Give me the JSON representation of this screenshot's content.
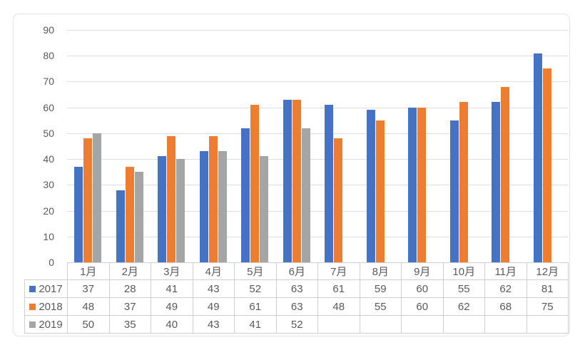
{
  "chart_data": {
    "type": "bar",
    "title": "",
    "xlabel": "",
    "ylabel": "",
    "categories": [
      "1月",
      "2月",
      "3月",
      "4月",
      "5月",
      "6月",
      "7月",
      "8月",
      "9月",
      "10月",
      "11月",
      "12月"
    ],
    "series": [
      {
        "name": "2017",
        "color": "#4472C4",
        "values": [
          37,
          28,
          41,
          43,
          52,
          63,
          61,
          59,
          60,
          55,
          62,
          81
        ]
      },
      {
        "name": "2018",
        "color": "#ED7D31",
        "values": [
          48,
          37,
          49,
          49,
          61,
          63,
          48,
          55,
          60,
          62,
          68,
          75
        ]
      },
      {
        "name": "2019",
        "color": "#A5A5A5",
        "values": [
          50,
          35,
          40,
          43,
          41,
          52,
          null,
          null,
          null,
          null,
          null,
          null
        ]
      }
    ],
    "ylim": [
      0,
      90
    ],
    "y_step": 10,
    "y_tick_labels": [
      "0",
      "10",
      "20",
      "30",
      "40",
      "50",
      "60",
      "70",
      "80",
      "90"
    ],
    "grid": "horizontal",
    "legend_position": "data-table-left",
    "data_table_shown": true
  },
  "colors": {
    "gridline": "#dddddd",
    "table_border": "#cfcfcf",
    "text": "#595959",
    "frame_border": "#e3e3e3",
    "background": "#ffffff"
  }
}
